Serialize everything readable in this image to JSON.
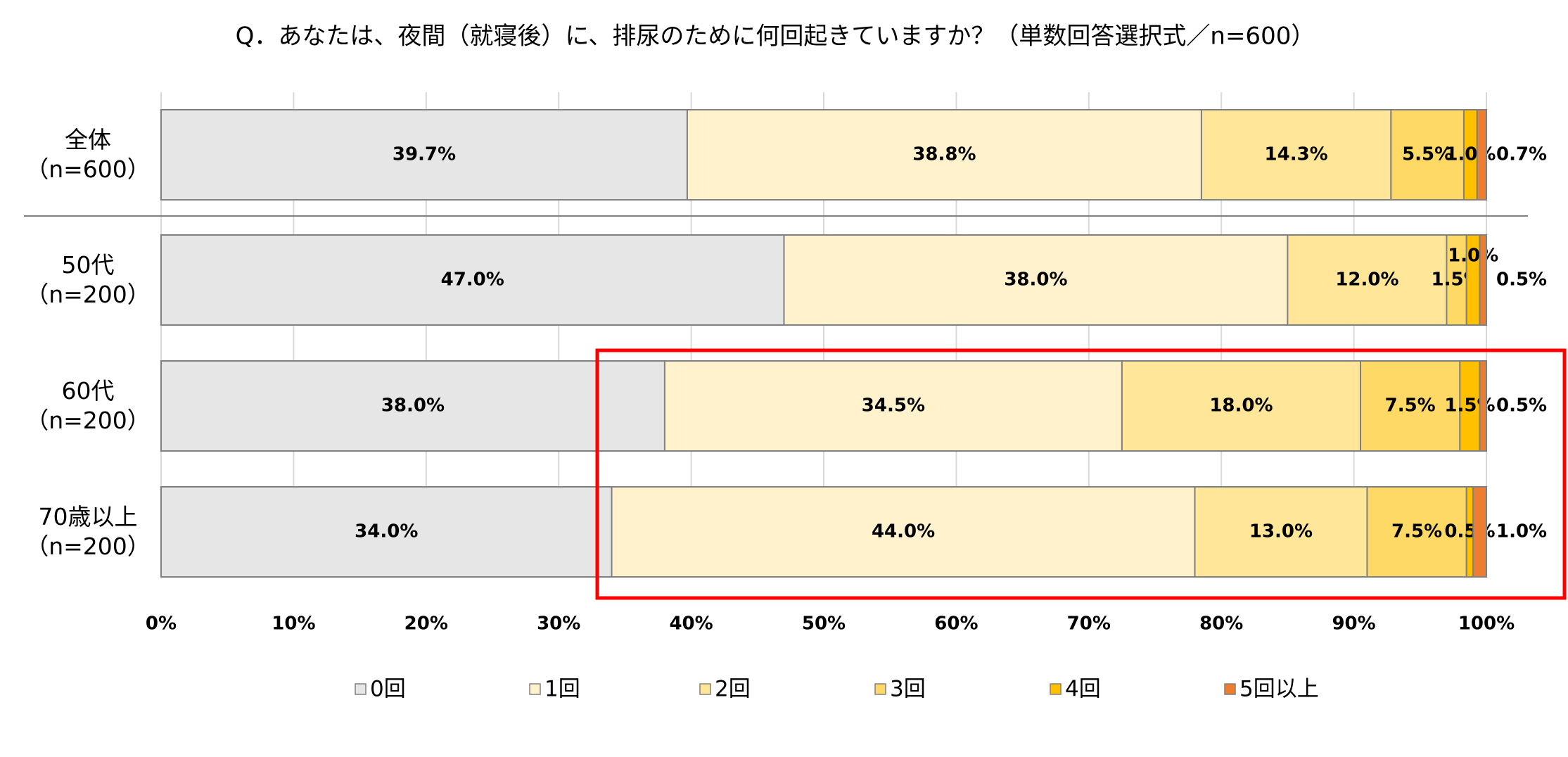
{
  "chart_data": {
    "type": "stacked_bar_horizontal",
    "title": "Q．あなたは、夜間（就寝後）に、排尿のために何回起きていますか？（単数回答選択式／n=600）",
    "categories": [
      "全体\n（n=600）",
      "50代\n（n=200）",
      "60代\n（n=200）",
      "70歳以上\n（n=200）"
    ],
    "series": [
      {
        "name": "0回",
        "color": "#e6e6e6",
        "values": [
          39.7,
          47.0,
          38.0,
          34.0
        ],
        "value_labels": [
          "39.7%",
          "47.0%",
          "38.0%",
          "34.0%"
        ]
      },
      {
        "name": "1回",
        "color": "#fff2cc",
        "values": [
          38.8,
          38.0,
          34.5,
          44.0
        ],
        "value_labels": [
          "38.8%",
          "38.0%",
          "34.5%",
          "44.0%"
        ]
      },
      {
        "name": "2回",
        "color": "#ffe699",
        "values": [
          14.3,
          12.0,
          18.0,
          13.0
        ],
        "value_labels": [
          "14.3%",
          "12.0%",
          "18.0%",
          "13.0%"
        ]
      },
      {
        "name": "3回",
        "color": "#ffd966",
        "values": [
          5.5,
          1.5,
          7.5,
          7.5
        ],
        "value_labels": [
          "5.5%",
          "1.5%",
          "7.5%",
          "7.5%"
        ]
      },
      {
        "name": "4回",
        "color": "#ffc000",
        "values": [
          1.0,
          1.0,
          1.5,
          0.5
        ],
        "value_labels": [
          "1.0%",
          "1.0%",
          "1.5%",
          "0.5%"
        ]
      },
      {
        "name": "5回以上",
        "color": "#ed7d31",
        "values": [
          0.7,
          0.5,
          0.5,
          1.0
        ],
        "value_labels": [
          "0.7%",
          "0.5%",
          "0.5%",
          "1.0%"
        ]
      }
    ],
    "xlim": [
      0,
      100
    ],
    "xticks": [
      {
        "value": 0,
        "label": "0%"
      },
      {
        "value": 10,
        "label": "10%"
      },
      {
        "value": 20,
        "label": "20%"
      },
      {
        "value": 30,
        "label": "30%"
      },
      {
        "value": 40,
        "label": "40%"
      },
      {
        "value": 50,
        "label": "50%"
      },
      {
        "value": 60,
        "label": "60%"
      },
      {
        "value": 70,
        "label": "70%"
      },
      {
        "value": 80,
        "label": "80%"
      },
      {
        "value": 90,
        "label": "90%"
      },
      {
        "value": 100,
        "label": "100%"
      }
    ],
    "grid": true,
    "legend": "bottom"
  }
}
